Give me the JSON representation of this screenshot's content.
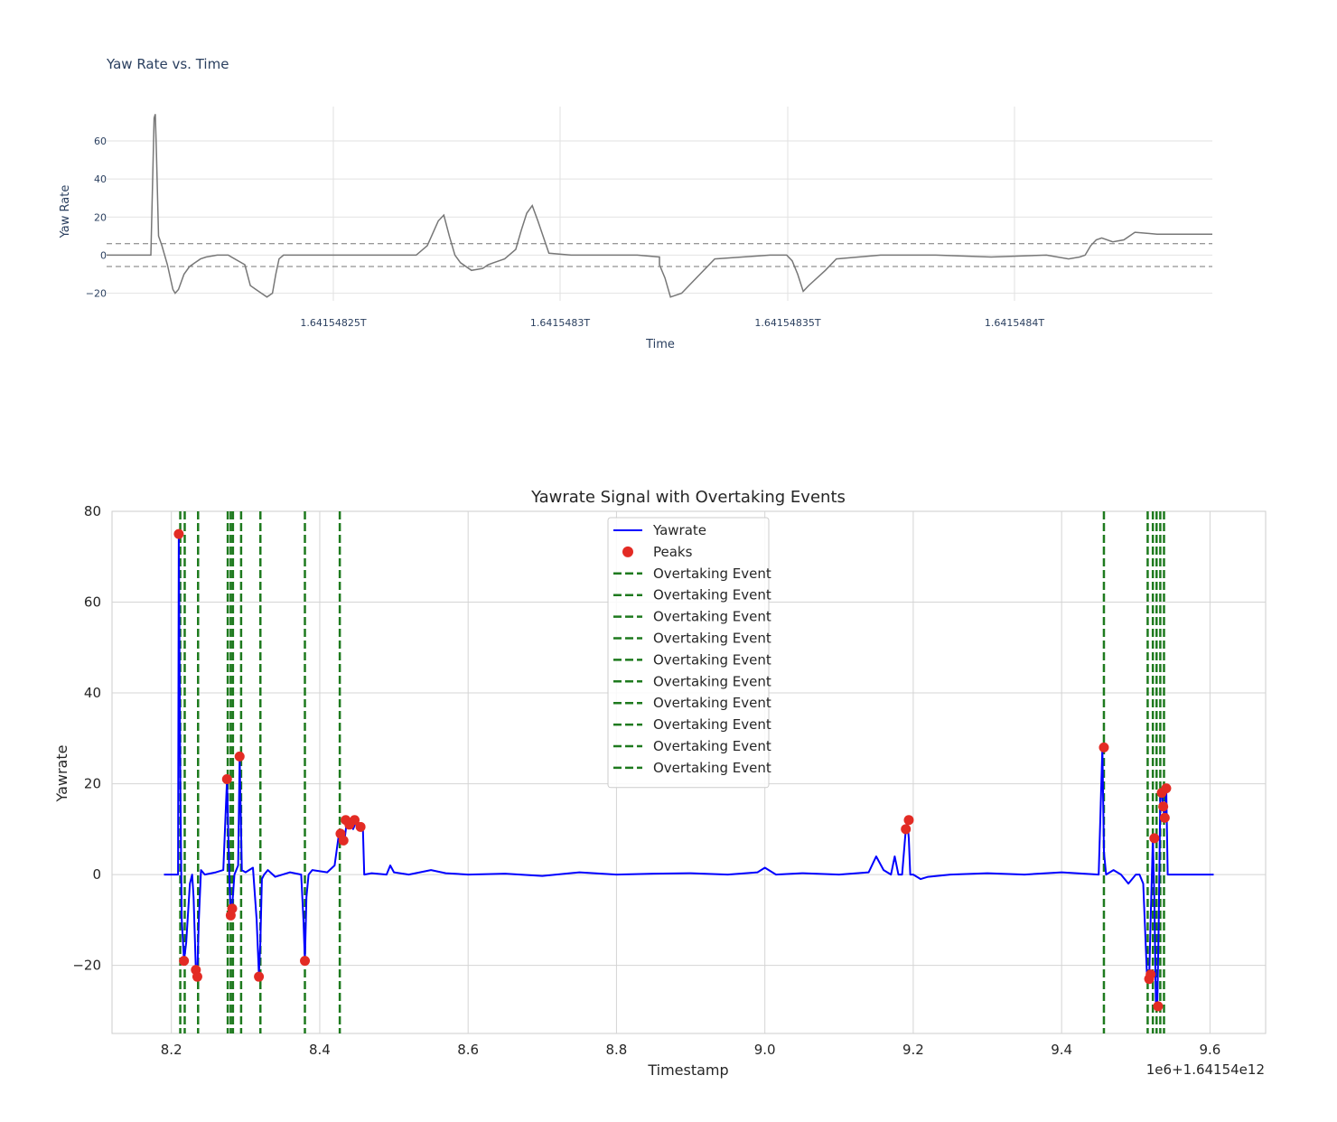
{
  "chart_data": [
    {
      "type": "line",
      "title": "Yaw Rate vs. Time",
      "xlabel": "Time",
      "ylabel": "Yaw Rate",
      "x_tick_labels": [
        "1.64154825T",
        "1.6415483T",
        "1.64154835T",
        "1.6415484T"
      ],
      "y_ticks": [
        -20,
        0,
        20,
        40,
        60
      ],
      "ylim": [
        -24,
        78
      ],
      "threshold_lines": [
        6,
        -6
      ],
      "grid": true,
      "line_color": "#777777",
      "series": [
        {
          "x": [
            0,
            0.04,
            0.043,
            0.044,
            0.045,
            0.047,
            0.05,
            0.055,
            0.06,
            0.062,
            0.065,
            0.07,
            0.075,
            0.08,
            0.085,
            0.09,
            0.1,
            0.11,
            0.125,
            0.13,
            0.135,
            0.14,
            0.145,
            0.15,
            0.153,
            0.156,
            0.16,
            0.17,
            0.2,
            0.25,
            0.28,
            0.29,
            0.3,
            0.305,
            0.31,
            0.315,
            0.32,
            0.33,
            0.34,
            0.345,
            0.35,
            0.36,
            0.37,
            0.375,
            0.38,
            0.385,
            0.39,
            0.4,
            0.42,
            0.45,
            0.48,
            0.5,
            0.5,
            0.505,
            0.51,
            0.52,
            0.55,
            0.6,
            0.615,
            0.62,
            0.625,
            0.63,
            0.635,
            0.65,
            0.66,
            0.7,
            0.75,
            0.8,
            0.85,
            0.87,
            0.88,
            0.885,
            0.89,
            0.895,
            0.9,
            0.91,
            0.92,
            0.93,
            0.95,
            0.98,
            1.0
          ],
          "y": [
            0,
            0,
            72,
            74,
            55,
            10,
            5,
            -5,
            -18,
            -20,
            -18,
            -10,
            -6,
            -4,
            -2,
            -1,
            0,
            0,
            -5,
            -16,
            -18,
            -20,
            -22,
            -20,
            -10,
            -2,
            0,
            0,
            0,
            0,
            0,
            5,
            18,
            21,
            10,
            0,
            -4,
            -8,
            -7,
            -5,
            -4,
            -2,
            3,
            13,
            22,
            26,
            18,
            1,
            0,
            0,
            0,
            -1,
            -5,
            -12,
            -22,
            -20,
            -2,
            0,
            0,
            -3,
            -10,
            -19,
            -16,
            -8,
            -2,
            0,
            0,
            -1,
            0,
            -2,
            -1,
            0,
            5,
            8,
            9,
            7,
            8,
            12,
            11,
            11,
            11
          ]
        }
      ]
    },
    {
      "type": "line",
      "title": "Yawrate Signal with Overtaking Events",
      "xlabel": "Timestamp",
      "ylabel": "Yawrate",
      "x_offset_label": "1e6+1.64154e12",
      "x_ticks": [
        8.2,
        8.4,
        8.6,
        8.8,
        9.0,
        9.2,
        9.4,
        9.6
      ],
      "y_ticks": [
        -20,
        0,
        20,
        40,
        60,
        80
      ],
      "xlim": [
        8.12,
        9.675
      ],
      "ylim": [
        -35,
        80
      ],
      "grid": true,
      "legend": {
        "position": "upper center",
        "entries": [
          "Yawrate",
          "Peaks",
          "Overtaking Event",
          "Overtaking Event",
          "Overtaking Event",
          "Overtaking Event",
          "Overtaking Event",
          "Overtaking Event",
          "Overtaking Event",
          "Overtaking Event",
          "Overtaking Event",
          "Overtaking Event"
        ]
      },
      "colors": {
        "yawrate": "#0000ff",
        "peaks": "#e32b24",
        "events": "#1e7a1e"
      },
      "series": [
        {
          "name": "Yawrate",
          "x": [
            8.19,
            8.209,
            8.21,
            8.212,
            8.214,
            8.217,
            8.22,
            8.225,
            8.228,
            8.23,
            8.233,
            8.235,
            8.237,
            8.24,
            8.245,
            8.26,
            8.27,
            8.275,
            8.278,
            8.28,
            8.282,
            8.285,
            8.29,
            8.292,
            8.295,
            8.3,
            8.31,
            8.315,
            8.318,
            8.32,
            8.322,
            8.325,
            8.33,
            8.34,
            8.36,
            8.375,
            8.378,
            8.38,
            8.382,
            8.385,
            8.39,
            8.41,
            8.42,
            8.425,
            8.43,
            8.433,
            8.436,
            8.44,
            8.445,
            8.45,
            8.455,
            8.458,
            8.46,
            8.47,
            8.49,
            8.495,
            8.5,
            8.52,
            8.55,
            8.57,
            8.6,
            8.65,
            8.7,
            8.75,
            8.8,
            8.85,
            8.9,
            8.95,
            8.99,
            9.0,
            9.015,
            9.05,
            9.1,
            9.14,
            9.15,
            9.16,
            9.17,
            9.175,
            9.18,
            9.185,
            9.19,
            9.192,
            9.194,
            9.196,
            9.2,
            9.21,
            9.22,
            9.25,
            9.3,
            9.35,
            9.4,
            9.45,
            9.455,
            9.457,
            9.46,
            9.47,
            9.48,
            9.49,
            9.5,
            9.505,
            9.51,
            9.515,
            9.518,
            9.52,
            9.523,
            9.525,
            9.527,
            9.529,
            9.531,
            9.533,
            9.535,
            9.537,
            9.539,
            9.541,
            9.543,
            9.545,
            9.55,
            9.605
          ],
          "y": [
            0,
            0,
            75,
            20,
            -10,
            -19,
            -15,
            -2,
            0,
            -5,
            -21,
            -22,
            -10,
            1,
            0,
            0.5,
            1,
            21,
            0,
            -9,
            -7,
            0,
            2,
            26,
            1,
            0.5,
            1.5,
            -10,
            -22,
            -15,
            -1,
            0,
            1,
            -0.5,
            0.5,
            0,
            -10,
            -19,
            -5,
            0,
            1,
            0.5,
            2,
            8,
            9,
            7,
            11,
            12,
            10,
            12,
            10,
            11,
            0,
            0.3,
            0,
            2,
            0.5,
            0,
            1,
            0.3,
            0,
            0.2,
            -0.3,
            0.5,
            0,
            0.2,
            0.3,
            0,
            0.5,
            1.5,
            0,
            0.3,
            0,
            0.5,
            4,
            1,
            0,
            4,
            0,
            0,
            10,
            12,
            8,
            0,
            0,
            -1,
            -0.5,
            0,
            0.3,
            0,
            0.5,
            0,
            28,
            5,
            0,
            1,
            0,
            -2,
            0,
            0,
            -2,
            -22,
            -23,
            -10,
            8,
            -5,
            -28,
            -29,
            -10,
            17,
            18,
            15,
            12,
            19,
            0,
            0,
            0,
            0
          ]
        }
      ],
      "peaks": {
        "x": [
          8.21,
          8.217,
          8.233,
          8.235,
          8.275,
          8.28,
          8.282,
          8.292,
          8.318,
          8.38,
          8.428,
          8.432,
          8.435,
          8.44,
          8.447,
          8.455,
          9.19,
          9.194,
          9.457,
          9.518,
          9.52,
          9.525,
          9.53,
          9.535,
          9.537,
          9.539,
          9.541
        ],
        "y": [
          75,
          -19,
          -21,
          -22.5,
          21,
          -9,
          -7.5,
          26,
          -22.5,
          -19,
          9,
          7.5,
          12,
          11,
          12,
          10.5,
          10,
          12,
          28,
          -23,
          -22,
          8,
          -29,
          18,
          15,
          12.5,
          19
        ]
      },
      "overtaking_events": [
        8.212,
        8.218,
        8.236,
        8.276,
        8.28,
        8.283,
        8.294,
        8.32,
        8.38,
        8.427,
        9.457,
        9.516,
        9.523,
        9.528,
        9.533,
        9.538
      ]
    }
  ]
}
